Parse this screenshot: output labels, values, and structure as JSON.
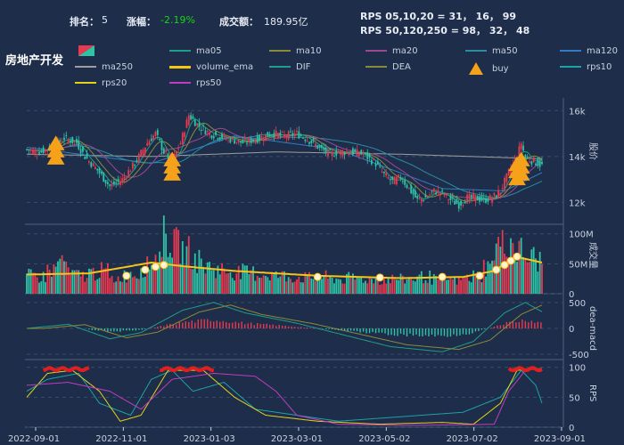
{
  "header": {
    "rank_label": "排名：",
    "rank_value": "5",
    "change_label": "涨幅：",
    "change_value": "-2.19%",
    "turnover_label": "成交额：",
    "turnover_value": "189.95亿",
    "rps_line1": "RPS 05,10,20 = 31， 16， 99",
    "rps_line2": "RPS 50,120,250 = 98， 32， 48"
  },
  "sector_name": "房地产开发",
  "legend": [
    {
      "name": "ma05",
      "color": "#1f9e89",
      "kind": "line"
    },
    {
      "name": "ma10",
      "color": "#8a8a3c",
      "kind": "line"
    },
    {
      "name": "ma20",
      "color": "#9c4a8f",
      "kind": "line"
    },
    {
      "name": "ma50",
      "color": "#2a8ea0",
      "kind": "line"
    },
    {
      "name": "ma120",
      "color": "#2f7fc0",
      "kind": "line"
    },
    {
      "name": "ma250",
      "color": "#9e9e9e",
      "kind": "line"
    },
    {
      "name": "volume_ema",
      "color": "#f5c518",
      "kind": "thick"
    },
    {
      "name": "DIF",
      "color": "#1f9e89",
      "kind": "line"
    },
    {
      "name": "DEA",
      "color": "#8a8a3c",
      "kind": "line"
    },
    {
      "name": "buy",
      "color": "#f5a21a",
      "kind": "triangle"
    },
    {
      "name": "rps10",
      "color": "#1aa5a5",
      "kind": "line"
    },
    {
      "name": "rps20",
      "color": "#e6d21a",
      "kind": "line"
    },
    {
      "name": "rps50",
      "color": "#c23cc2",
      "kind": "line"
    }
  ],
  "colors": {
    "up": "#e8394f",
    "down": "#2fc3a6",
    "grid": "#3a4d6e",
    "text": "#c9d1df"
  },
  "chart_data": {
    "type": "candlestick",
    "x_ticks": [
      "2022-09-01",
      "2022-11-01",
      "2023-01-03",
      "2023-03-01",
      "2023-05-02",
      "2023-07-02",
      "2023-09-01"
    ],
    "price": {
      "ylabel": "股价",
      "ticks": [
        "12k",
        "14k",
        "16k"
      ],
      "ylim": [
        11200,
        16400
      ],
      "close_path": [
        [
          0,
          14300
        ],
        [
          6,
          14200
        ],
        [
          12,
          14400
        ],
        [
          18,
          14800
        ],
        [
          24,
          14600
        ],
        [
          28,
          14000
        ],
        [
          34,
          13400
        ],
        [
          40,
          12700
        ],
        [
          46,
          13000
        ],
        [
          52,
          13700
        ],
        [
          58,
          14600
        ],
        [
          62,
          15000
        ],
        [
          66,
          14200
        ],
        [
          70,
          13800
        ],
        [
          74,
          14600
        ],
        [
          78,
          15800
        ],
        [
          82,
          15400
        ],
        [
          88,
          15000
        ],
        [
          96,
          14800
        ],
        [
          104,
          14600
        ],
        [
          112,
          14800
        ],
        [
          118,
          15000
        ],
        [
          124,
          14900
        ],
        [
          130,
          15000
        ],
        [
          136,
          14700
        ],
        [
          142,
          14300
        ],
        [
          146,
          14100
        ],
        [
          150,
          14200
        ],
        [
          156,
          14200
        ],
        [
          162,
          14100
        ],
        [
          168,
          13700
        ],
        [
          172,
          13200
        ],
        [
          176,
          12900
        ],
        [
          180,
          13100
        ],
        [
          184,
          12600
        ],
        [
          188,
          12100
        ],
        [
          192,
          12200
        ],
        [
          196,
          12500
        ],
        [
          200,
          12400
        ],
        [
          204,
          12100
        ],
        [
          208,
          11900
        ],
        [
          212,
          12200
        ],
        [
          216,
          12200
        ],
        [
          220,
          12100
        ],
        [
          224,
          12200
        ],
        [
          228,
          12500
        ],
        [
          232,
          13300
        ],
        [
          236,
          14000
        ],
        [
          238,
          14600
        ],
        [
          240,
          13900
        ],
        [
          244,
          13800
        ],
        [
          248,
          13600
        ]
      ],
      "ma_long_path": [
        [
          0,
          14100
        ],
        [
          60,
          14000
        ],
        [
          120,
          14200
        ],
        [
          180,
          14100
        ],
        [
          248,
          13900
        ]
      ],
      "ma_mid_path": [
        [
          0,
          14400
        ],
        [
          60,
          13700
        ],
        [
          100,
          14900
        ],
        [
          150,
          14300
        ],
        [
          200,
          12600
        ],
        [
          230,
          12500
        ],
        [
          248,
          13300
        ]
      ]
    },
    "volume": {
      "ylabel": "成交量",
      "ticks": [
        "0",
        "50M",
        "100M"
      ],
      "ylim": [
        0,
        110
      ],
      "values_sample": [
        30,
        28,
        40,
        55,
        32,
        30,
        35,
        38,
        25,
        30,
        34,
        45,
        60,
        95,
        80,
        70,
        55,
        45,
        40,
        38,
        36,
        35,
        33,
        32,
        30,
        28,
        27,
        26,
        28,
        25,
        24,
        26,
        25,
        24,
        23,
        25,
        24,
        26,
        28,
        24,
        25,
        22,
        26,
        30,
        45,
        80,
        85,
        70,
        60,
        55
      ],
      "ema_path": [
        [
          0,
          32
        ],
        [
          30,
          34
        ],
        [
          60,
          52
        ],
        [
          75,
          46
        ],
        [
          100,
          38
        ],
        [
          140,
          30
        ],
        [
          180,
          26
        ],
        [
          210,
          28
        ],
        [
          225,
          38
        ],
        [
          235,
          62
        ],
        [
          248,
          52
        ]
      ]
    },
    "macd": {
      "ylabel": "dea-macd",
      "ticks": [
        "-500",
        "0",
        "500"
      ],
      "ylim": [
        -600,
        600
      ]
    },
    "rps": {
      "ylabel": "RPS",
      "ticks": [
        "0",
        "50",
        "100"
      ],
      "ylim": [
        0,
        110
      ]
    }
  }
}
